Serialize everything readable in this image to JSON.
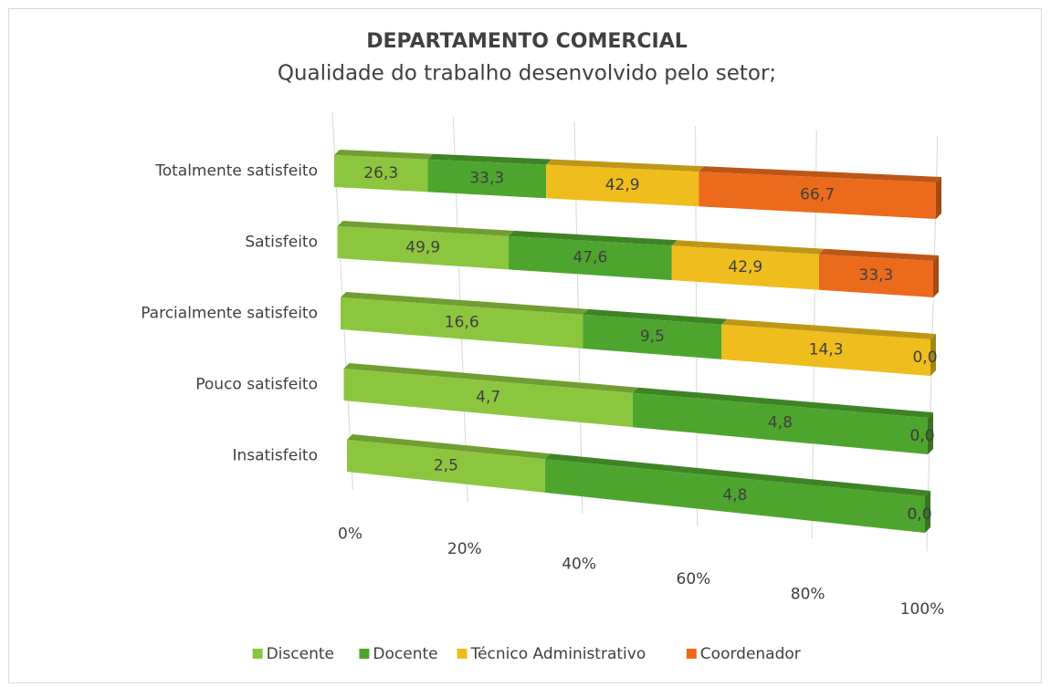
{
  "chart_data": {
    "type": "bar3d",
    "orientation": "horizontal",
    "stacking": "percent",
    "title": "DEPARTAMENTO COMERCIAL",
    "subtitle": "Qualidade do trabalho desenvolvido pelo setor;",
    "categories": [
      "Totalmente satisfeito",
      "Satisfeito",
      "Parcialmente satisfeito",
      "Pouco satisfeito",
      "Insatisfeito"
    ],
    "series": [
      {
        "name": "Discente",
        "color": "#8cc63f",
        "values": [
          26.3,
          49.9,
          16.6,
          4.7,
          2.5
        ],
        "value_labels": [
          "26,3",
          "49,9",
          "16,6",
          "4,7",
          "2,5"
        ]
      },
      {
        "name": "Docente",
        "color": "#4ea52e",
        "values": [
          33.3,
          47.6,
          9.5,
          4.8,
          4.8
        ],
        "value_labels": [
          "33,3",
          "47,6",
          "9,5",
          "4,8",
          "4,8"
        ]
      },
      {
        "name": "Técnico Administrativo",
        "color": "#efbd1d",
        "values": [
          42.9,
          42.9,
          14.3,
          0.0,
          0.0
        ],
        "value_labels": [
          "42,9",
          "42,9",
          "14,3",
          "0,0",
          "0,0"
        ]
      },
      {
        "name": "Coordenador",
        "color": "#ec6a1c",
        "values": [
          66.7,
          33.3,
          0.0,
          0.0,
          0.0
        ],
        "value_labels": [
          "66,7",
          "33,3",
          "0,0",
          "0,0",
          "0,0"
        ]
      }
    ],
    "xlim": [
      0,
      100
    ],
    "xticks": [
      {
        "value": 0,
        "label": "0%"
      },
      {
        "value": 20,
        "label": "20%"
      },
      {
        "value": 40,
        "label": "40%"
      },
      {
        "value": 60,
        "label": "60%"
      },
      {
        "value": 80,
        "label": "80%"
      },
      {
        "value": 100,
        "label": "100%"
      }
    ],
    "grid": true,
    "legend": "bottom"
  }
}
